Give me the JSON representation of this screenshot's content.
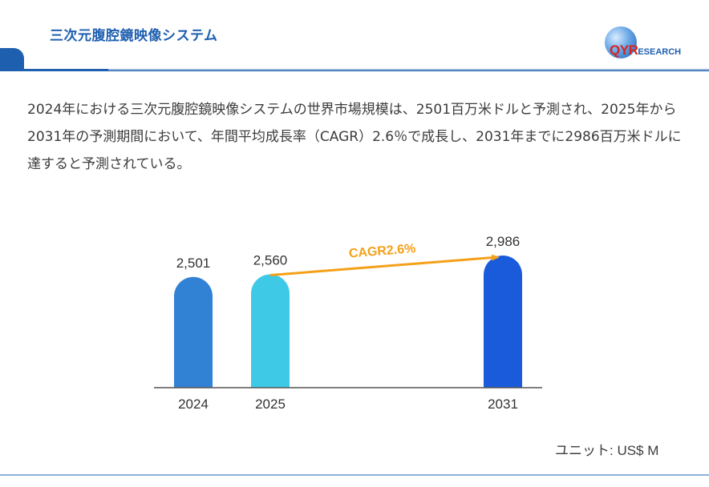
{
  "header": {
    "title": "三次元腹腔鏡映像システム"
  },
  "logo": {
    "brand_q": "QY",
    "brand_r": "R",
    "brand_rest": "ESEARCH",
    "colors": {
      "red": "#d6231e",
      "blue": "#1f5fb0"
    }
  },
  "description": "2024年における三次元腹腔鏡映像システムの世界市場規模は、2501百万米ドルと予測され、2025年から2031年の予測期間において、年間平均成長率（CAGR）2.6％で成長し、2031年までに2986百万米ドルに達すると予測されている。",
  "unit_label": "ユニット: US$ M",
  "chart_data": {
    "type": "bar",
    "categories": [
      "2024",
      "2025",
      "2031"
    ],
    "values": [
      2501,
      2560,
      2986
    ],
    "value_labels": [
      "2,501",
      "2,560",
      "2,986"
    ],
    "colors": [
      "#3182d4",
      "#3ecae6",
      "#1a5bdc"
    ],
    "annotation": {
      "text": "CAGR2.6%",
      "from": "2025",
      "to": "2031",
      "color": "#f5a019"
    },
    "grid": false,
    "legend": "none"
  }
}
